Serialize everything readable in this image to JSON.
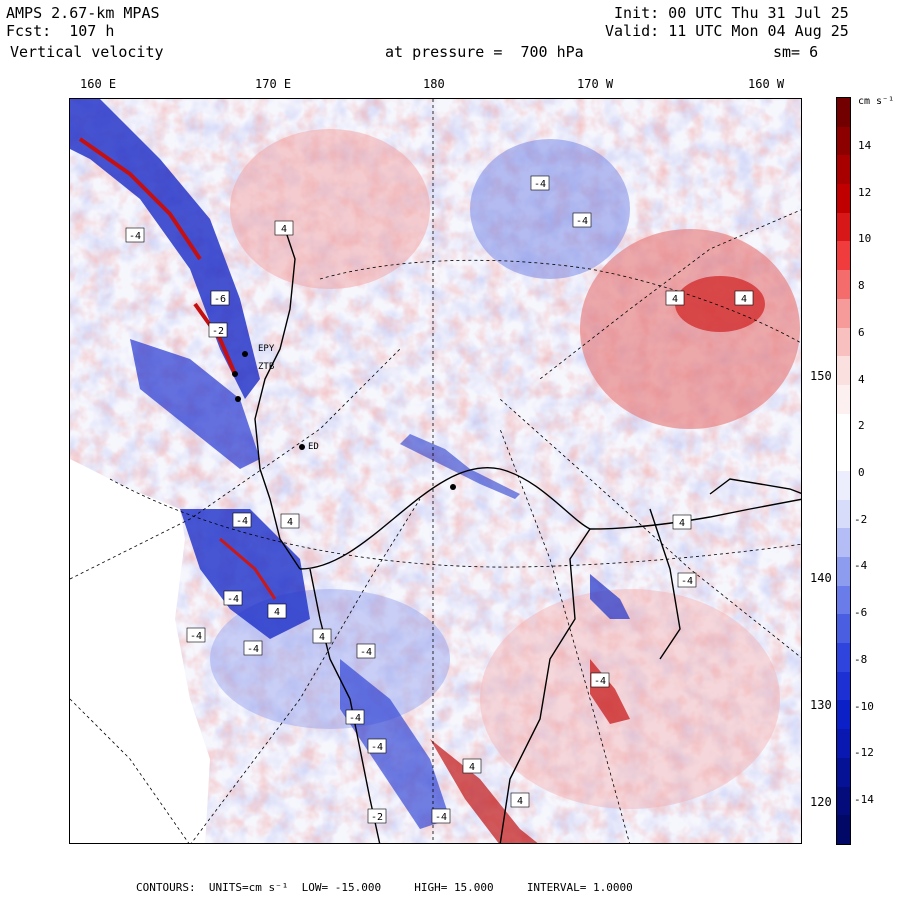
{
  "header": {
    "model": "AMPS 2.67-km MPAS",
    "forecast": "Fcst:  107 h",
    "field": "Vertical velocity",
    "init": "Init: 00 UTC Thu 31 Jul 25",
    "valid": "Valid: 11 UTC Mon 04 Aug 25",
    "pressure": "at pressure =  700 hPa",
    "smoothing": "sm= 6"
  },
  "map": {
    "lon_labels": [
      "160 E",
      "170 E",
      "180",
      "170 W",
      "160 W"
    ],
    "lat_labels": [
      "150 W",
      "140 W",
      "130 W",
      "120 W"
    ],
    "station_labels": [
      "EPY",
      "ZTB",
      "ED"
    ],
    "contour_box_labels": [
      "-4",
      "-4",
      "4",
      "-4",
      "4",
      "4",
      "-6",
      "-2",
      "4",
      "-4",
      "-4",
      "4",
      "4",
      "-4",
      "4",
      "-4",
      "-4",
      "4",
      "-4",
      "-4",
      "-4",
      "-4",
      "4",
      "-2",
      "-4",
      "4",
      "-4"
    ]
  },
  "colorbar": {
    "units": "cm s⁻¹",
    "labels": [
      "14",
      "12",
      "10",
      "8",
      "6",
      "4",
      "2",
      "0",
      "-2",
      "-4",
      "-6",
      "-8",
      "-10",
      "-12",
      "-14"
    ],
    "colors": [
      "#730000",
      "#8c0000",
      "#a80000",
      "#c00000",
      "#d81818",
      "#f03c3c",
      "#f46c6c",
      "#f79a9a",
      "#f9c0c0",
      "#fbe0e0",
      "#fdf0f0",
      "#ffffff",
      "#ffffff",
      "#ecedfd",
      "#d8dcfb",
      "#b4bdf6",
      "#8e9cf0",
      "#6a7ce9",
      "#4a5ee2",
      "#2e44dc",
      "#1c30d4",
      "#0c20c8",
      "#0818b0",
      "#061296",
      "#040c7c",
      "#020866"
    ]
  },
  "footer": {
    "contours_label": "CONTOURS:",
    "units": "UNITS=cm s⁻¹",
    "low": "LOW= -15.000",
    "high": "HIGH= 15.000",
    "interval": "INTERVAL= 1.0000"
  }
}
